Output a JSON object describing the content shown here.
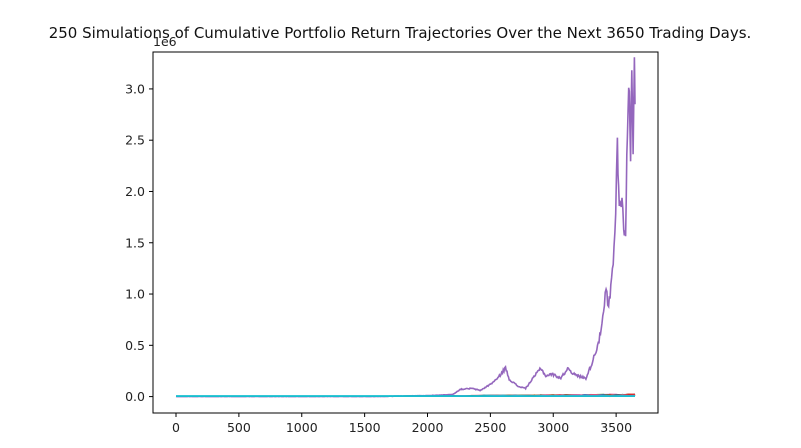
{
  "chart_data": {
    "type": "line",
    "title": "250 Simulations of Cumulative Portfolio Return Trajectories Over the Next 3650 Trading Days.",
    "xlabel": "",
    "ylabel": "",
    "y_offset_text": "1e6",
    "xlim": [
      -183,
      3833
    ],
    "ylim": [
      -0.16,
      3.36
    ],
    "y_scale_multiplier": 1000000,
    "x_ticks": [
      0,
      500,
      1000,
      1500,
      2000,
      2500,
      3000,
      3500
    ],
    "x_tick_labels": [
      "0",
      "500",
      "1000",
      "1500",
      "2000",
      "2500",
      "3000",
      "3500"
    ],
    "y_ticks": [
      0.0,
      0.5,
      1.0,
      1.5,
      2.0,
      2.5,
      3.0
    ],
    "y_tick_labels": [
      "0.0",
      "0.5",
      "1.0",
      "1.5",
      "2.0",
      "2.5",
      "3.0"
    ],
    "grid": false,
    "legend": "none",
    "num_simulations": 250,
    "highlight_series": {
      "color": "#9467bd",
      "points": [
        [
          0,
          0.0
        ],
        [
          1600,
          0.0
        ],
        [
          2000,
          0.01
        ],
        [
          2200,
          0.02
        ],
        [
          2260,
          0.07
        ],
        [
          2350,
          0.08
        ],
        [
          2420,
          0.06
        ],
        [
          2500,
          0.12
        ],
        [
          2560,
          0.18
        ],
        [
          2620,
          0.28
        ],
        [
          2650,
          0.17
        ],
        [
          2720,
          0.1
        ],
        [
          2780,
          0.08
        ],
        [
          2840,
          0.18
        ],
        [
          2900,
          0.28
        ],
        [
          2940,
          0.2
        ],
        [
          2990,
          0.22
        ],
        [
          3060,
          0.18
        ],
        [
          3120,
          0.28
        ],
        [
          3160,
          0.22
        ],
        [
          3200,
          0.2
        ],
        [
          3260,
          0.18
        ],
        [
          3300,
          0.3
        ],
        [
          3340,
          0.45
        ],
        [
          3370,
          0.58
        ],
        [
          3400,
          0.8
        ],
        [
          3420,
          1.05
        ],
        [
          3440,
          0.85
        ],
        [
          3470,
          1.2
        ],
        [
          3490,
          1.55
        ],
        [
          3510,
          2.45
        ],
        [
          3525,
          1.85
        ],
        [
          3540,
          1.95
        ],
        [
          3560,
          1.7
        ],
        [
          3575,
          1.6
        ],
        [
          3590,
          2.6
        ],
        [
          3605,
          3.05
        ],
        [
          3615,
          2.35
        ],
        [
          3625,
          3.25
        ],
        [
          3635,
          2.5
        ],
        [
          3645,
          3.15
        ],
        [
          3650,
          2.85
        ]
      ]
    },
    "flat_series_colors": [
      "#1f77b4",
      "#ff7f0e",
      "#2ca02c",
      "#d62728",
      "#8c564b",
      "#e377c2",
      "#7f7f7f",
      "#bcbd22",
      "#17becf"
    ]
  }
}
